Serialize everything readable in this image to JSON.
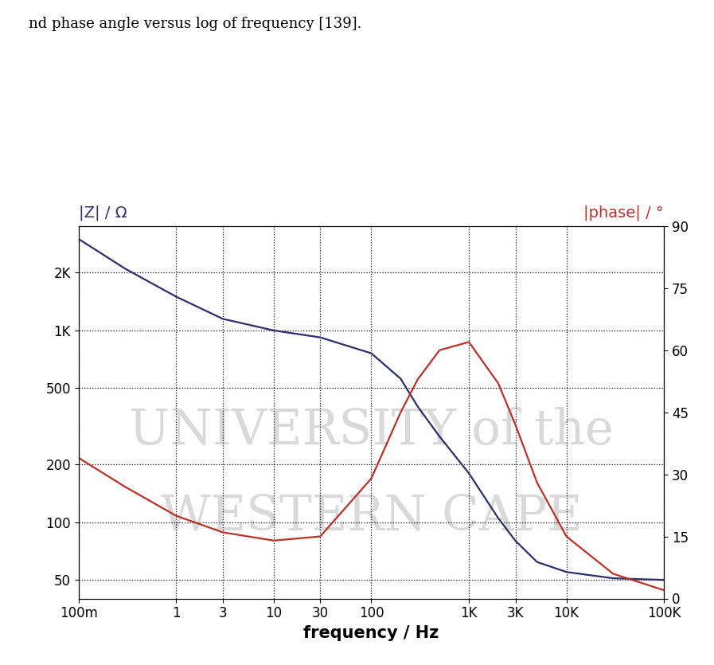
{
  "chart_data": {
    "type": "line",
    "caption": "nd phase angle versus log of frequency [139].",
    "watermark": [
      "UNIVERSITY of the",
      "WESTERN CAPE"
    ],
    "x_label": "frequency / Hz",
    "y_label": "|Z| / Ω",
    "y2_label": "|phase| / °",
    "log": true,
    "grid": true,
    "x": [
      0.1,
      0.3,
      1,
      3,
      10,
      30,
      100,
      200,
      300,
      500,
      1000,
      2000,
      3000,
      5000,
      10000,
      30000,
      100000
    ],
    "series": [
      {
        "name": "|Z|",
        "color": "#2e2e6e",
        "values": [
          3000,
          2100,
          1500,
          1150,
          1000,
          920,
          760,
          560,
          400,
          280,
          180,
          105,
          80,
          62,
          55,
          51,
          50
        ]
      },
      {
        "name": "|phase|",
        "color": "#b8322a",
        "axis": "y2",
        "values": [
          34,
          27,
          20,
          16,
          14,
          15,
          29,
          45,
          53,
          60,
          62,
          52,
          42,
          28,
          15,
          6,
          2
        ]
      }
    ],
    "xlim": [
      0.1,
      100000
    ],
    "xticks": [
      {
        "value": 0.1,
        "label": "100m"
      },
      1,
      3,
      10,
      30,
      100,
      {
        "value": 1000,
        "label": "1K"
      },
      {
        "value": 3000,
        "label": "3K"
      },
      {
        "value": 10000,
        "label": "10K"
      },
      {
        "value": 100000,
        "label": "100K"
      }
    ],
    "ylim": [
      40,
      3500
    ],
    "yticks": [
      50,
      100,
      200,
      500,
      {
        "value": 1000,
        "label": "1K"
      },
      {
        "value": 2000,
        "label": "2K"
      }
    ],
    "y2lim": [
      0,
      90
    ],
    "y2ticks": [
      0,
      15,
      30,
      45,
      60,
      75,
      90
    ]
  }
}
